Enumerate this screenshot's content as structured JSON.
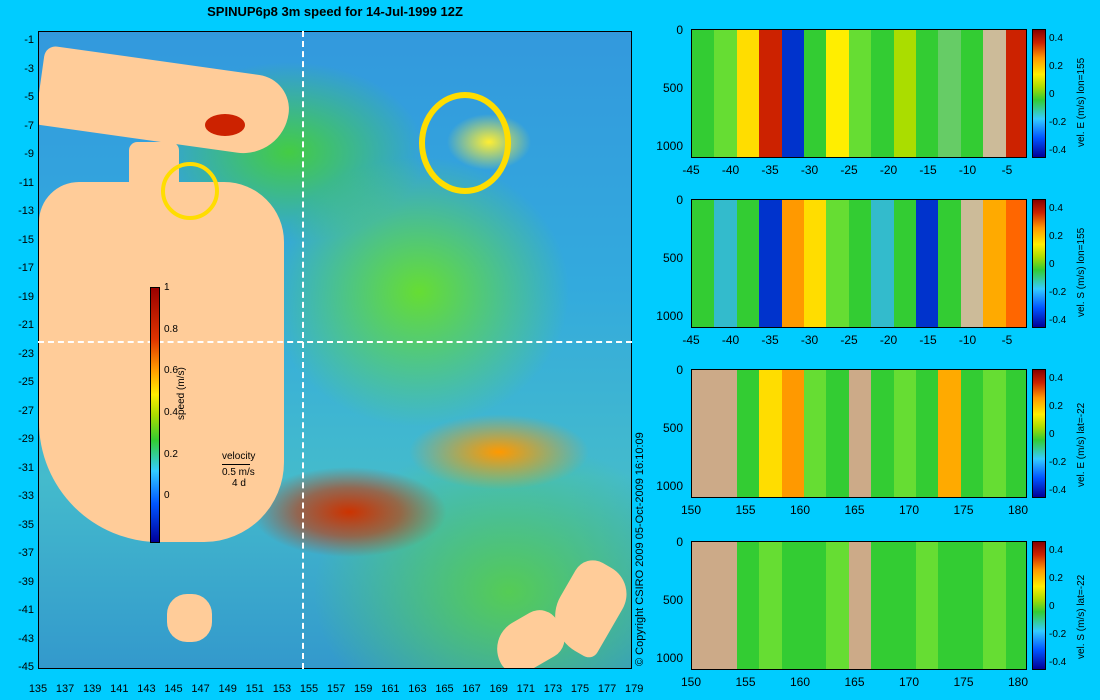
{
  "title": "SPINUP6p8 3m speed for 14-Jul-1999 12Z",
  "map": {
    "lat_ticks": [
      "-1",
      "-3",
      "-5",
      "-7",
      "-9",
      "-11",
      "-13",
      "-15",
      "-17",
      "-19",
      "-21",
      "-23",
      "-25",
      "-27",
      "-29",
      "-31",
      "-33",
      "-35",
      "-37",
      "-39",
      "-41",
      "-43",
      "-45"
    ],
    "lon_ticks": [
      "135",
      "137",
      "139",
      "141",
      "143",
      "145",
      "147",
      "149",
      "151",
      "153",
      "155",
      "157",
      "159",
      "161",
      "163",
      "165",
      "167",
      "169",
      "171",
      "173",
      "175",
      "177",
      "179"
    ],
    "colorbar": {
      "label": "speed (m/s)",
      "ticks": [
        "1",
        "0.8",
        "0.6",
        "0.4",
        "0.2",
        "0"
      ]
    },
    "velocity_legend": {
      "title": "velocity",
      "scale": "0.5 m/s",
      "duration": "4 d"
    },
    "colors": {
      "land": "#ffcc99",
      "background": "#00ccff"
    }
  },
  "copyright": "© Copyright CSIRO 2009   05-Oct-2009 16:10:09",
  "panels": [
    {
      "label": "vel. E (m/s) lon=155",
      "y_ticks": [
        "0",
        "500",
        "1000"
      ],
      "x_ticks": [
        "-45",
        "-40",
        "-35",
        "-30",
        "-25",
        "-20",
        "-15",
        "-10",
        "-5"
      ],
      "cbar_ticks": [
        "0.4",
        "0.2",
        "0",
        "-0.2",
        "-0.4"
      ]
    },
    {
      "label": "vel. S (m/s) lon=155",
      "y_ticks": [
        "0",
        "500",
        "1000"
      ],
      "x_ticks": [
        "-45",
        "-40",
        "-35",
        "-30",
        "-25",
        "-20",
        "-15",
        "-10",
        "-5"
      ],
      "cbar_ticks": [
        "0.4",
        "0.2",
        "0",
        "-0.2",
        "-0.4"
      ]
    },
    {
      "label": "vel. E (m/s) lat=-22",
      "y_ticks": [
        "0",
        "500",
        "1000"
      ],
      "x_ticks": [
        "150",
        "155",
        "160",
        "165",
        "170",
        "175",
        "180"
      ],
      "cbar_ticks": [
        "0.4",
        "0.2",
        "0",
        "-0.2",
        "-0.4"
      ]
    },
    {
      "label": "vel. S (m/s) lat=-22",
      "y_ticks": [
        "0",
        "500",
        "1000"
      ],
      "x_ticks": [
        "150",
        "155",
        "160",
        "165",
        "170",
        "175",
        "180"
      ],
      "cbar_ticks": [
        "0.4",
        "0.2",
        "0",
        "-0.2",
        "-0.4"
      ]
    }
  ]
}
